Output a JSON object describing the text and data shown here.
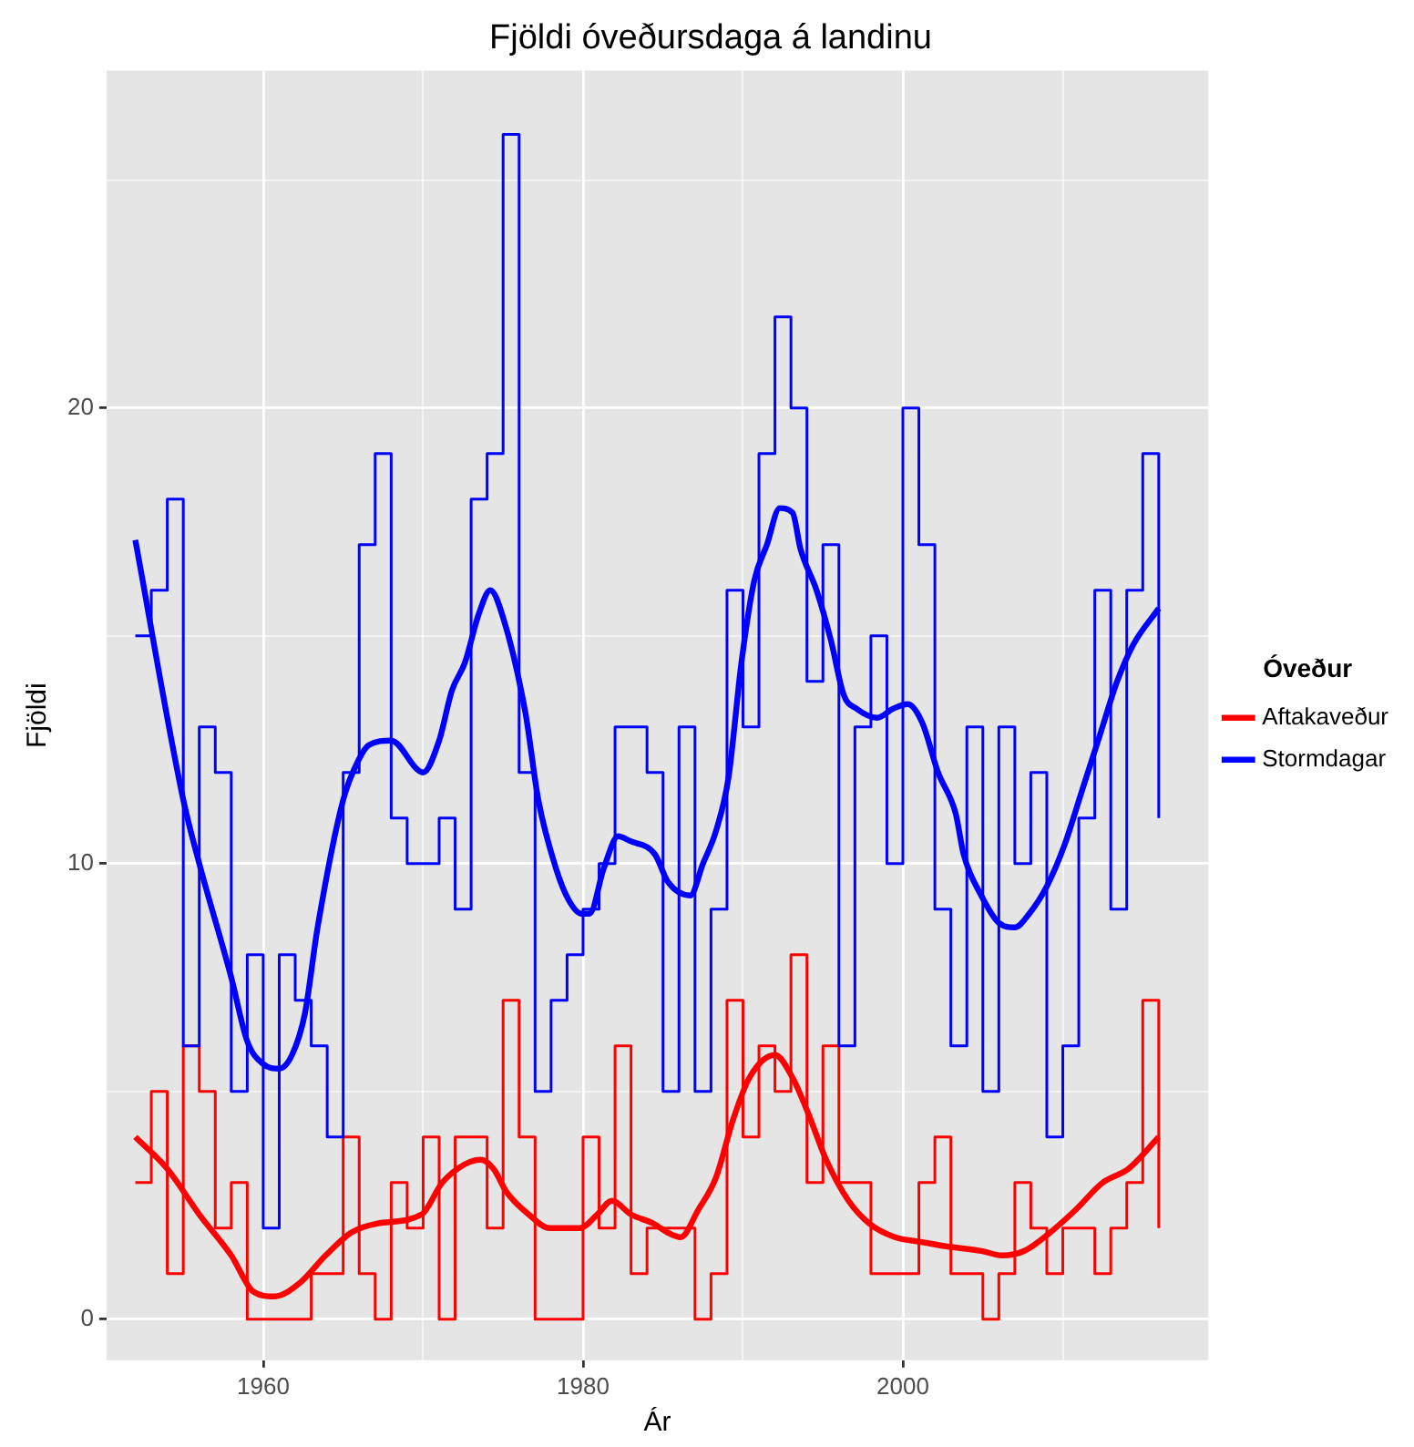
{
  "chart_data": {
    "type": "line",
    "title": "Fjöldi óveðursdaga á landinu",
    "xlabel": "Ár",
    "ylabel": "Fjöldi",
    "legend_title": "Óveður",
    "legend": "right",
    "grid": true,
    "marker": "none",
    "xlim": [
      1950.2,
      2019.1
    ],
    "ylim": [
      -0.9,
      27.4
    ],
    "xticks": [
      1960,
      {
        "value": 1970,
        "label": null
      },
      1980,
      {
        "value": 1990,
        "label": null
      },
      2000,
      {
        "value": 2010,
        "label": null
      }
    ],
    "yticks": [
      0,
      {
        "value": 5,
        "label": null
      },
      10,
      {
        "value": 15,
        "label": null
      },
      20,
      {
        "value": 25,
        "label": null
      }
    ],
    "x": [
      1952,
      1953,
      1954,
      1955,
      1956,
      1957,
      1958,
      1959,
      1960,
      1961,
      1962,
      1963,
      1964,
      1965,
      1966,
      1967,
      1968,
      1969,
      1970,
      1971,
      1972,
      1973,
      1974,
      1975,
      1976,
      1977,
      1978,
      1979,
      1980,
      1981,
      1982,
      1983,
      1984,
      1985,
      1986,
      1987,
      1988,
      1989,
      1990,
      1991,
      1992,
      1993,
      1994,
      1995,
      1996,
      1997,
      1998,
      1999,
      2000,
      2001,
      2002,
      2003,
      2004,
      2005,
      2006,
      2007,
      2008,
      2009,
      2010,
      2011,
      2012,
      2013,
      2014,
      2015,
      2016
    ],
    "series": [
      {
        "type": "step",
        "color": "#0000ff",
        "values": [
          15,
          16,
          18,
          6,
          13,
          12,
          5,
          8,
          2,
          8,
          7,
          6,
          4,
          12,
          17,
          19,
          11,
          10,
          10,
          11,
          9,
          18,
          19,
          26,
          12,
          5,
          7,
          8,
          9,
          10,
          13,
          13,
          12,
          5,
          13,
          5,
          9,
          16,
          13,
          19,
          22,
          20,
          14,
          17,
          6,
          13,
          15,
          10,
          20,
          17,
          9,
          6,
          13,
          5,
          13,
          10,
          12,
          4,
          6,
          11,
          16,
          9,
          16,
          19,
          11
        ]
      },
      {
        "type": "step",
        "color": "#ff0000",
        "values": [
          3,
          5,
          1,
          6,
          5,
          2,
          3,
          0,
          0,
          0,
          0,
          1,
          1,
          4,
          1,
          0,
          3,
          2,
          4,
          0,
          4,
          4,
          2,
          7,
          4,
          0,
          0,
          0,
          4,
          2,
          6,
          1,
          2,
          2,
          2,
          0,
          1,
          7,
          4,
          6,
          5,
          8,
          3,
          6,
          3,
          3,
          1,
          1,
          1,
          3,
          4,
          1,
          1,
          0,
          1,
          3,
          2,
          1,
          2,
          2,
          1,
          2,
          3,
          7,
          2
        ]
      },
      {
        "type": "line",
        "name": "Aftakaveður",
        "color": "#ff0000",
        "x": [
          1952,
          1954,
          1956,
          1958,
          1959.4,
          1960.7,
          1962.3,
          1963.9,
          1965.5,
          1967.1,
          1969.9,
          1971.2,
          1972.6,
          1973.6,
          1974.4,
          1975.2,
          1976.6,
          1977.9,
          1979.8,
          1980.9,
          1981.8,
          1983,
          1984.4,
          1985.3,
          1986.1,
          1987.2,
          1988.3,
          1989.4,
          1990.4,
          1992,
          1993.1,
          1994.1,
          1995.2,
          1996.6,
          1997.9,
          1999.5,
          2001.1,
          2002.7,
          2004.9,
          2006.2,
          2007.6,
          2009.2,
          2010.8,
          2012.5,
          2014.1,
          2016
        ],
        "values": [
          4.0,
          3.3,
          2.3,
          1.4,
          0.6,
          0.5,
          0.8,
          1.4,
          1.9,
          2.1,
          2.3,
          3.0,
          3.4,
          3.5,
          3.3,
          2.8,
          2.3,
          2.0,
          2.0,
          2.3,
          2.6,
          2.3,
          2.1,
          1.9,
          1.8,
          2.4,
          3.1,
          4.4,
          5.3,
          5.8,
          5.3,
          4.5,
          3.5,
          2.6,
          2.1,
          1.8,
          1.7,
          1.6,
          1.5,
          1.4,
          1.5,
          1.9,
          2.4,
          3.0,
          3.3,
          4.0
        ]
      },
      {
        "type": "line",
        "name": "Stormdagar",
        "color": "#0000ff",
        "x": [
          1952,
          1955,
          1956,
          1958,
          1959,
          1960,
          1961,
          1961.8,
          1962.6,
          1963.4,
          1965,
          1966,
          1966.6,
          1968,
          1970,
          1971,
          1971.8,
          1972.6,
          1973.5,
          1974.2,
          1975,
          1976.4,
          1977.2,
          1978.3,
          1979.1,
          1979.9,
          1980.4,
          1981.3,
          1982.2,
          1982.9,
          1984.5,
          1985.3,
          1986.7,
          1987.5,
          1988.3,
          1989.1,
          1989.9,
          1990.7,
          1991.5,
          1992.3,
          1993.1,
          1993.6,
          1994.6,
          1995.5,
          1996.3,
          1997.1,
          1998.4,
          1999.4,
          2000.3,
          2001.2,
          2002.2,
          2003.3,
          2003.8,
          2004.9,
          2006,
          2007,
          2007.9,
          2009,
          2010.1,
          2011.2,
          2012.3,
          2013.4,
          2014.4,
          2016
        ],
        "values": [
          17.1,
          11.4,
          10.0,
          7.5,
          6.1,
          5.6,
          5.5,
          5.8,
          6.7,
          8.6,
          11.4,
          12.3,
          12.6,
          12.7,
          12.0,
          12.7,
          13.8,
          14.4,
          15.5,
          16.0,
          15.4,
          13.3,
          11.4,
          9.9,
          9.2,
          8.9,
          8.9,
          9.9,
          10.6,
          10.5,
          10.2,
          9.6,
          9.3,
          10.0,
          10.7,
          11.9,
          14.4,
          16.2,
          17.0,
          17.8,
          17.7,
          16.9,
          16.0,
          14.9,
          13.7,
          13.4,
          13.2,
          13.4,
          13.5,
          13.1,
          12.0,
          11.1,
          10.2,
          9.3,
          8.7,
          8.6,
          8.9,
          9.5,
          10.4,
          11.6,
          12.8,
          14.0,
          14.8,
          15.6
        ]
      }
    ]
  }
}
